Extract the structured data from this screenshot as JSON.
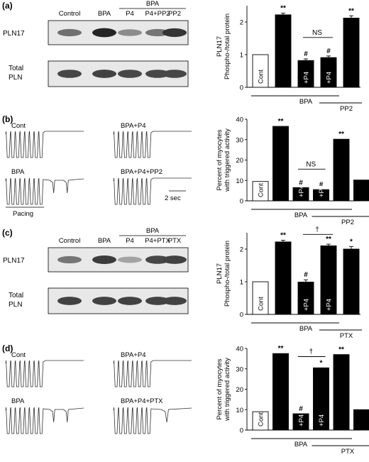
{
  "panels": [
    {
      "letter": "(a)",
      "kind": "blot",
      "lane_labels": [
        "Control",
        "BPA",
        "P4",
        "P4+PP2",
        "PP2"
      ],
      "group_label": "BPA",
      "row_labels": [
        "PLN17",
        [
          "Total",
          "PLN"
        ]
      ],
      "rows": [
        {
          "intensity": [
            0.62,
            0.95,
            0.5,
            0.6,
            0.88
          ]
        },
        {
          "intensity": [
            0.8,
            0.82,
            0.8,
            0.8,
            0.8
          ]
        }
      ]
    },
    {
      "letter": "(b)",
      "kind": "traces",
      "traces": [
        {
          "label": "Cont",
          "dropouts": 0
        },
        {
          "label": "BPA+P4",
          "dropouts": 0
        },
        {
          "label": "BPA",
          "dropouts": 2
        },
        {
          "label": "BPA+P4+PP2",
          "dropouts": 0
        }
      ],
      "pacing_label": "Pacing",
      "scale_label": "2 sec"
    },
    {
      "letter": "(c)",
      "kind": "blot",
      "lane_labels": [
        "Control",
        "BPA",
        "P4",
        "P4+PTX",
        "PTX"
      ],
      "group_label": "BPA",
      "row_labels": [
        "PLN17",
        [
          "Total",
          "PLN"
        ]
      ],
      "rows": [
        {
          "intensity": [
            0.6,
            0.85,
            0.4,
            0.8,
            0.82
          ]
        },
        {
          "intensity": [
            0.82,
            0.82,
            0.82,
            0.82,
            0.82
          ]
        }
      ]
    },
    {
      "letter": "(d)",
      "kind": "traces",
      "traces": [
        {
          "label": "Cont",
          "dropouts": 0
        },
        {
          "label": "BPA+P4",
          "dropouts": 0
        },
        {
          "label": "BPA",
          "dropouts": 2
        },
        {
          "label": "BPA+P4+PTX",
          "dropouts": 1
        }
      ],
      "pacing_label": "",
      "scale_label": ""
    }
  ],
  "chart_data": [
    {
      "panel": "(a)",
      "type": "bar",
      "ylabel": [
        "PLN17",
        "Phospho-/total protein"
      ],
      "ylim": [
        0,
        2.5
      ],
      "yticks": [
        0,
        1,
        2
      ],
      "values": [
        1.0,
        2.22,
        0.82,
        0.91,
        2.12
      ],
      "errors": [
        0,
        0.05,
        0.05,
        0.05,
        0.07
      ],
      "fills": [
        "white",
        "black",
        "black",
        "black",
        "black"
      ],
      "bar_labels": [
        "Cont",
        "",
        "+P4",
        "+P4",
        ""
      ],
      "markers": [
        "",
        "**",
        "#",
        "#",
        "**"
      ],
      "bracket_label": "NS",
      "group_labels": [
        "BPA",
        "PP2"
      ]
    },
    {
      "panel": "(b)",
      "type": "bar",
      "ylabel": [
        "Percent of myocytes",
        "with triggered activity"
      ],
      "ylim": [
        0,
        40
      ],
      "yticks": [
        0,
        10,
        20,
        30,
        40
      ],
      "values": [
        9.5,
        36.5,
        6.5,
        5.5,
        30.2,
        10.2
      ],
      "errors": [
        0,
        0,
        0,
        0,
        0,
        0
      ],
      "fills": [
        "white",
        "black",
        "black",
        "black",
        "black",
        "black"
      ],
      "bar_labels": [
        "Cont",
        "",
        "+P4",
        "+P4",
        "",
        ""
      ],
      "markers": [
        "",
        "**",
        "#",
        "#",
        "**",
        ""
      ],
      "bracket_label": "NS",
      "group_labels": [
        "BPA",
        "PP2"
      ]
    },
    {
      "panel": "(c)",
      "type": "bar",
      "ylabel": [
        "PLN17",
        "Phospho-/total protein"
      ],
      "ylim": [
        0,
        2.5
      ],
      "yticks": [
        0,
        1,
        2
      ],
      "values": [
        1.0,
        2.22,
        0.99,
        2.1,
        2.0
      ],
      "errors": [
        0,
        0.05,
        0.07,
        0.05,
        0.08
      ],
      "fills": [
        "white",
        "black",
        "black",
        "black",
        "black"
      ],
      "bar_labels": [
        "Cont",
        "",
        "+P4",
        "+P4",
        ""
      ],
      "markers": [
        "",
        "**",
        "#",
        "**",
        "*"
      ],
      "bracket_label": "†",
      "group_labels": [
        "BPA",
        "PTX"
      ]
    },
    {
      "panel": "(d)",
      "type": "bar",
      "ylabel": [
        "Percent of myocytes",
        "with triggered activity"
      ],
      "ylim": [
        0,
        40
      ],
      "yticks": [
        0,
        10,
        20,
        30,
        40
      ],
      "values": [
        9.0,
        37.5,
        8.0,
        30.5,
        37.0,
        10.0
      ],
      "errors": [
        0,
        0,
        0,
        0,
        0,
        0
      ],
      "fills": [
        "white",
        "black",
        "black",
        "black",
        "black",
        "black"
      ],
      "bar_labels": [
        "Cont",
        "",
        "+P4",
        "+P4",
        "",
        ""
      ],
      "markers": [
        "",
        "**",
        "#",
        "*",
        "**",
        ""
      ],
      "bracket_label": "†",
      "group_labels": [
        "BPA",
        "PTX"
      ]
    }
  ]
}
